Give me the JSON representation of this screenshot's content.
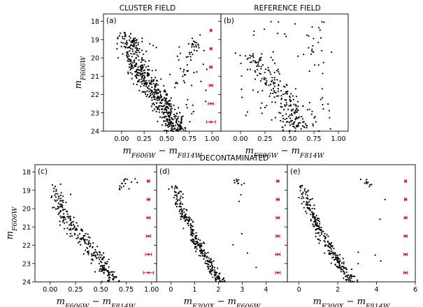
{
  "figure": {
    "title_cluster": "CLUSTER FIELD",
    "title_reference": "REFERENCE FIELD",
    "title_decontaminated": "DECONTAMINATED",
    "errorbar_color": "#e0191b",
    "point_color": "#000000"
  },
  "chart_data": [
    {
      "id": "a",
      "type": "scatter",
      "tag": "(a)",
      "title": "CLUSTER FIELD",
      "xlabel": "mF606W − mF814W",
      "ylabel": "mF606W",
      "xlim": [
        -0.2,
        1.1
      ],
      "ylim": [
        24,
        17.6
      ],
      "xticks": [
        0.0,
        0.25,
        0.5,
        0.75,
        1.0
      ],
      "xtick_labels": [
        "0.00",
        "0.25",
        "0.50",
        "0.75",
        "1.00"
      ],
      "yticks": [
        18,
        19,
        20,
        21,
        22,
        23,
        24
      ],
      "ytick_labels": [
        "18",
        "19",
        "20",
        "21",
        "22",
        "23",
        "24"
      ],
      "errorbars": {
        "x": 0.99,
        "y": [
          18.5,
          19.5,
          20.5,
          21.5,
          22.5,
          23.5
        ],
        "xerr": [
          0.01,
          0.012,
          0.015,
          0.02,
          0.03,
          0.05
        ]
      },
      "population": {
        "ridge": [
          [
            18.6,
            0.08
          ],
          [
            19.3,
            0.1
          ],
          [
            20.0,
            0.14
          ],
          [
            20.6,
            0.2
          ],
          [
            21.2,
            0.28
          ],
          [
            21.8,
            0.36
          ],
          [
            22.4,
            0.44
          ],
          [
            23.0,
            0.51
          ],
          [
            23.6,
            0.57
          ],
          [
            24.0,
            0.62
          ]
        ],
        "n_ms": 560,
        "ms_spread": 0.07,
        "n_rgb": 35,
        "rgb": [
          [
            18.4,
            0.82
          ],
          [
            19.5,
            0.78
          ],
          [
            20.5,
            0.74
          ],
          [
            21.0,
            0.7
          ],
          [
            21.5,
            0.66
          ]
        ],
        "rgb_spread": 0.04,
        "n_field": 40,
        "field_x": [
          0.3,
          0.95
        ],
        "field_y": [
          19.2,
          23.9
        ],
        "seed": 11
      }
    },
    {
      "id": "b",
      "type": "scatter",
      "tag": "(b)",
      "title": "REFERENCE FIELD",
      "xlabel": "mF606W − mF814W",
      "ylabel": "",
      "xlim": [
        -0.2,
        1.1
      ],
      "ylim": [
        24,
        17.6
      ],
      "xticks": [
        0.0,
        0.25,
        0.5,
        0.75,
        1.0
      ],
      "xtick_labels": [
        "0.00",
        "0.25",
        "0.50",
        "0.75",
        "1.00"
      ],
      "yticks": [
        18,
        19,
        20,
        21,
        22,
        23,
        24
      ],
      "ytick_labels": [],
      "errorbars": null,
      "population": {
        "ridge": [
          [
            19.6,
            0.1
          ],
          [
            20.4,
            0.2
          ],
          [
            21.0,
            0.3
          ],
          [
            21.6,
            0.4
          ],
          [
            22.2,
            0.47
          ],
          [
            22.8,
            0.52
          ],
          [
            23.4,
            0.57
          ],
          [
            24.0,
            0.62
          ]
        ],
        "n_ms": 230,
        "ms_spread": 0.08,
        "n_rgb": 12,
        "rgb": [
          [
            18.5,
            0.75
          ],
          [
            19.5,
            0.72
          ],
          [
            20.5,
            0.7
          ]
        ],
        "rgb_spread": 0.05,
        "n_field": 55,
        "field_x": [
          0.0,
          0.95
        ],
        "field_y": [
          18.0,
          23.9
        ],
        "seed": 23
      }
    },
    {
      "id": "c",
      "type": "scatter",
      "tag": "(c)",
      "title": "DECONTAMINATED",
      "xlabel": "mF606W − mF814W",
      "ylabel": "mF606W",
      "xlim": [
        -0.15,
        1.05
      ],
      "ylim": [
        24,
        17.6
      ],
      "xticks": [
        0.0,
        0.25,
        0.5,
        0.75,
        1.0
      ],
      "xtick_labels": [
        "0.00",
        "0.25",
        "0.50",
        "0.75",
        "1.00"
      ],
      "yticks": [
        18,
        19,
        20,
        21,
        22,
        23,
        24
      ],
      "ytick_labels": [
        "18",
        "19",
        "20",
        "21",
        "22",
        "23",
        "24"
      ],
      "errorbars": {
        "x": 0.97,
        "y": [
          18.5,
          19.5,
          20.5,
          21.5,
          22.5,
          23.5
        ],
        "xerr": [
          0.012,
          0.014,
          0.017,
          0.022,
          0.03,
          0.05
        ]
      },
      "population": {
        "ridge": [
          [
            18.6,
            0.05
          ],
          [
            19.4,
            0.07
          ],
          [
            20.0,
            0.1
          ],
          [
            20.6,
            0.17
          ],
          [
            21.2,
            0.25
          ],
          [
            21.8,
            0.33
          ],
          [
            22.4,
            0.42
          ],
          [
            23.0,
            0.5
          ],
          [
            23.6,
            0.57
          ],
          [
            24.0,
            0.62
          ]
        ],
        "n_ms": 270,
        "ms_spread": 0.045,
        "n_rgb": 12,
        "rgb": [
          [
            18.3,
            0.7
          ],
          [
            18.7,
            0.74
          ],
          [
            19.0,
            0.69
          ]
        ],
        "rgb_spread": 0.03,
        "n_field": 4,
        "field_x": [
          0.75,
          0.9
        ],
        "field_y": [
          18.3,
          19.0
        ],
        "seed": 37
      }
    },
    {
      "id": "d",
      "type": "scatter",
      "tag": "(d)",
      "title": "",
      "xlabel": "mF300X − mF606W",
      "ylabel": "",
      "xlim": [
        -0.6,
        4.9
      ],
      "ylim": [
        24,
        17.6
      ],
      "xticks": [
        0,
        1,
        2,
        3,
        4
      ],
      "xtick_labels": [
        "0",
        "1",
        "2",
        "3",
        "4"
      ],
      "yticks": [
        18,
        19,
        20,
        21,
        22,
        23,
        24
      ],
      "ytick_labels": [],
      "errorbars": {
        "x": 4.5,
        "y": [
          18.5,
          19.5,
          20.5,
          21.5,
          22.5,
          23.5
        ],
        "xerr": [
          0.05,
          0.06,
          0.07,
          0.08,
          0.09,
          0.1
        ]
      },
      "population": {
        "ridge": [
          [
            18.6,
            0.15
          ],
          [
            19.4,
            0.3
          ],
          [
            20.0,
            0.45
          ],
          [
            20.6,
            0.65
          ],
          [
            21.2,
            0.85
          ],
          [
            21.8,
            1.05
          ],
          [
            22.4,
            1.3
          ],
          [
            23.0,
            1.6
          ],
          [
            23.6,
            1.9
          ],
          [
            24.0,
            2.1
          ]
        ],
        "n_ms": 270,
        "ms_spread": 0.12,
        "n_rgb": 10,
        "rgb": [
          [
            18.4,
            2.75
          ],
          [
            18.8,
            2.9
          ]
        ],
        "rgb_spread": 0.1,
        "n_field": 6,
        "field_x": [
          2.5,
          3.7
        ],
        "field_y": [
          18.3,
          23.3
        ],
        "seed": 41
      }
    },
    {
      "id": "e",
      "type": "scatter",
      "tag": "(e)",
      "title": "",
      "xlabel": "mF300X − mF814W",
      "ylabel": "",
      "xlim": [
        -0.6,
        6.0
      ],
      "ylim": [
        24,
        17.6
      ],
      "xticks": [
        0,
        2,
        4,
        6
      ],
      "xtick_labels": [
        "0",
        "2",
        "4",
        "6"
      ],
      "yticks": [
        18,
        19,
        20,
        21,
        22,
        23,
        24
      ],
      "ytick_labels": [],
      "errorbars": {
        "x": 5.5,
        "y": [
          18.5,
          19.5,
          20.5,
          21.5,
          22.5,
          23.5
        ],
        "xerr": [
          0.05,
          0.06,
          0.07,
          0.08,
          0.09,
          0.1
        ]
      },
      "population": {
        "ridge": [
          [
            18.6,
            0.2
          ],
          [
            19.4,
            0.35
          ],
          [
            20.0,
            0.55
          ],
          [
            20.6,
            0.8
          ],
          [
            21.2,
            1.05
          ],
          [
            21.8,
            1.35
          ],
          [
            22.4,
            1.7
          ],
          [
            23.0,
            2.1
          ],
          [
            23.6,
            2.5
          ],
          [
            24.0,
            2.75
          ]
        ],
        "n_ms": 270,
        "ms_spread": 0.15,
        "n_rgb": 10,
        "rgb": [
          [
            18.4,
            3.4
          ],
          [
            18.8,
            3.6
          ]
        ],
        "rgb_spread": 0.12,
        "n_field": 6,
        "field_x": [
          3.0,
          4.6
        ],
        "field_y": [
          18.4,
          23.3
        ],
        "seed": 53
      }
    }
  ]
}
